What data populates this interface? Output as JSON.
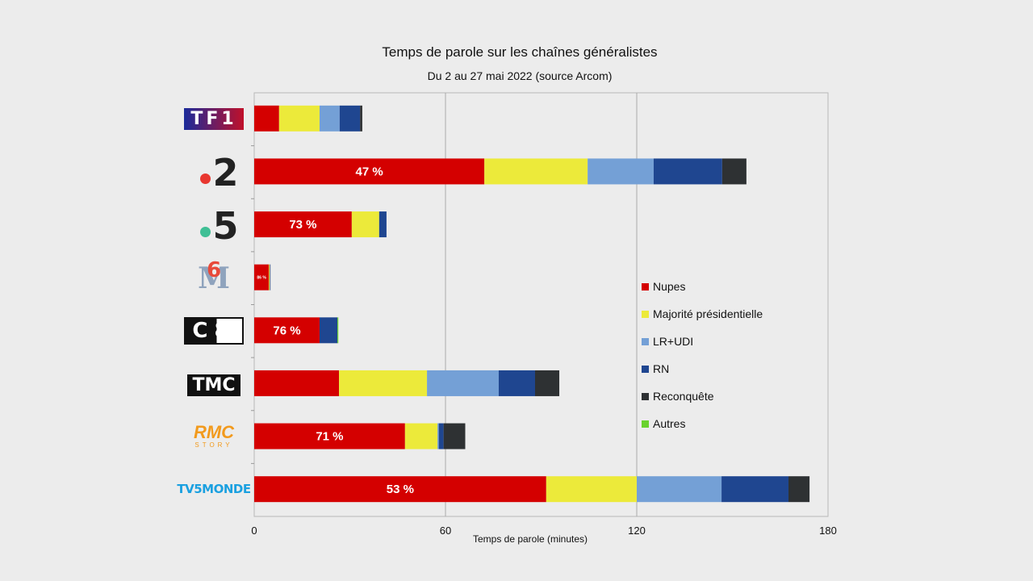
{
  "chart_data": {
    "type": "bar",
    "orientation": "horizontal-stacked",
    "title": "Temps de parole sur les chaînes généralistes",
    "subtitle": "Du 2 au 27 mai 2022 (source Arcom)",
    "xlabel": "Temps de parole (minutes)",
    "ylabel": "",
    "xlim": [
      0,
      180
    ],
    "xticks": [
      "0",
      "60",
      "120",
      "180"
    ],
    "xtick_values": [
      0,
      60,
      120,
      180
    ],
    "grid": true,
    "legend_position": "right",
    "categories": [
      "TF1",
      "France 2",
      "France 5",
      "M6",
      "C8",
      "TMC",
      "RMC Story",
      "TV5Monde"
    ],
    "series": [
      {
        "name": "Nupes",
        "color": "#d40000",
        "values": [
          7.8,
          72.2,
          30.6,
          4.6,
          20.5,
          26.6,
          47.3,
          91.6
        ]
      },
      {
        "name": "Majorité présidentielle",
        "color": "#ecea3a",
        "values": [
          12.7,
          32.4,
          8.6,
          0.3,
          0,
          27.6,
          10.2,
          28.4
        ]
      },
      {
        "name": "LR+UDI",
        "color": "#74a0d6",
        "values": [
          6.3,
          20.7,
          0,
          0,
          0,
          22.5,
          0.4,
          26.6
        ]
      },
      {
        "name": "RN",
        "color": "#1f4690",
        "values": [
          6.4,
          21.5,
          2.3,
          0.2,
          5.6,
          11.4,
          1.5,
          21.0
        ]
      },
      {
        "name": "Reconquête",
        "color": "#2e3133",
        "values": [
          0.7,
          7.6,
          0,
          0,
          0,
          7.6,
          6.8,
          6.6
        ]
      },
      {
        "name": "Autres",
        "color": "#6ad22e",
        "values": [
          0,
          0,
          0,
          0,
          0.3,
          0,
          0,
          0
        ]
      }
    ],
    "data_labels": [
      "",
      "47 %",
      "73 %",
      "86 %",
      "76 %",
      "",
      "71 %",
      "53 %"
    ]
  },
  "logos": [
    "TF1",
    "2",
    "5",
    "6",
    "C8",
    "TMC",
    "RMC",
    "STORY",
    "TV5MONDE"
  ]
}
